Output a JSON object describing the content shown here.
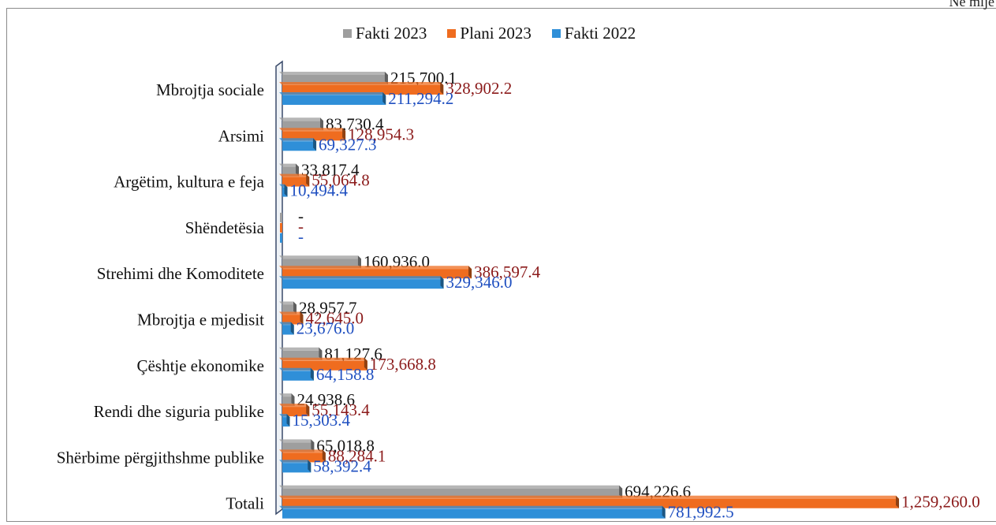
{
  "page": {
    "corner_note": "Në mijë"
  },
  "legend": [
    {
      "label": "Fakti 2023",
      "color": "#9e9e9e"
    },
    {
      "label": "Plani 2023",
      "color": "#ef6c1f"
    },
    {
      "label": "Fakti 2022",
      "color": "#2f8fd8"
    }
  ],
  "chart_data": {
    "type": "bar",
    "orientation": "horizontal",
    "title": "",
    "xlabel": "",
    "ylabel": "",
    "grid": false,
    "legend_position": "top",
    "xlim": [
      0,
      1259260.0
    ],
    "categories": [
      "Mbrojtja sociale",
      "Arsimi",
      "Argëtim, kultura e feja",
      "Shëndetësia",
      "Strehimi dhe Komoditete",
      "Mbrojtja e mjedisit",
      "Çështje ekonomike",
      "Rendi dhe siguria publike",
      "Shërbime përgjithshme publike",
      "Totali"
    ],
    "series": [
      {
        "name": "Fakti 2023",
        "color": "#9e9e9e",
        "label_color": "#111111",
        "values": [
          215700.1,
          83730.4,
          33817.4,
          0,
          160936.0,
          28957.7,
          81127.6,
          24938.6,
          65018.8,
          694226.6
        ],
        "labels": [
          "215,700.1",
          "83,730.4",
          "33,817.4",
          "-",
          "160,936.0",
          "28,957.7",
          "81,127.6",
          "24,938.6",
          "65,018.8",
          "694,226.6"
        ]
      },
      {
        "name": "Plani 2023",
        "color": "#ef6c1f",
        "label_color": "#8b1a1a",
        "values": [
          328902.2,
          128954.3,
          55064.8,
          0,
          386597.4,
          42645.0,
          173668.8,
          55143.4,
          88284.1,
          1259260.0
        ],
        "labels": [
          "328,902.2",
          "128,954.3",
          "55,064.8",
          "-",
          "386,597.4",
          "42,645.0",
          "173,668.8",
          "55,143.4",
          "88,284.1",
          "1,259,260.0"
        ]
      },
      {
        "name": "Fakti 2022",
        "color": "#2f8fd8",
        "label_color": "#1f4fc0",
        "values": [
          211294.2,
          69327.3,
          10494.4,
          0,
          329346.0,
          23676.0,
          64158.8,
          15303.4,
          58392.4,
          781992.5
        ],
        "labels": [
          "211,294.2",
          "69,327.3",
          "10,494.4",
          "-",
          "329,346.0",
          "23,676.0",
          "64,158.8",
          "15,303.4",
          "58,392.4",
          "781,992.5"
        ]
      }
    ]
  }
}
